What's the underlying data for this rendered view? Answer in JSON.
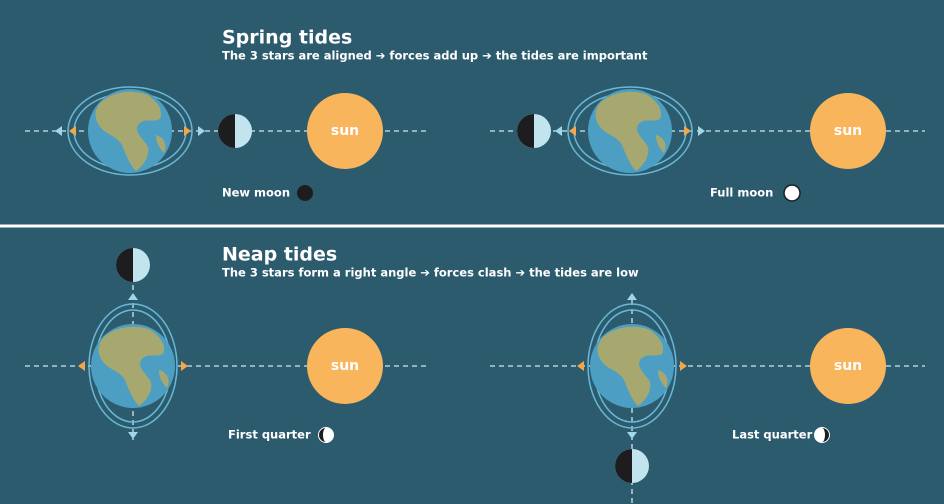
{
  "sections": [
    {
      "title": "Spring tides",
      "subtitle": "The 3 stars are aligned ➔ forces add up ➔ the tides are important",
      "panels": [
        {
          "sun": "sun",
          "phase": "New moon"
        },
        {
          "sun": "sun",
          "phase": "Full moon"
        }
      ]
    },
    {
      "title": "Neap tides",
      "subtitle": "The 3 stars form a right angle ➔ forces clash ➔ the tides are low",
      "panels": [
        {
          "sun": "sun",
          "phase": "First quarter"
        },
        {
          "sun": "sun",
          "phase": "Last quarter"
        }
      ]
    }
  ]
}
